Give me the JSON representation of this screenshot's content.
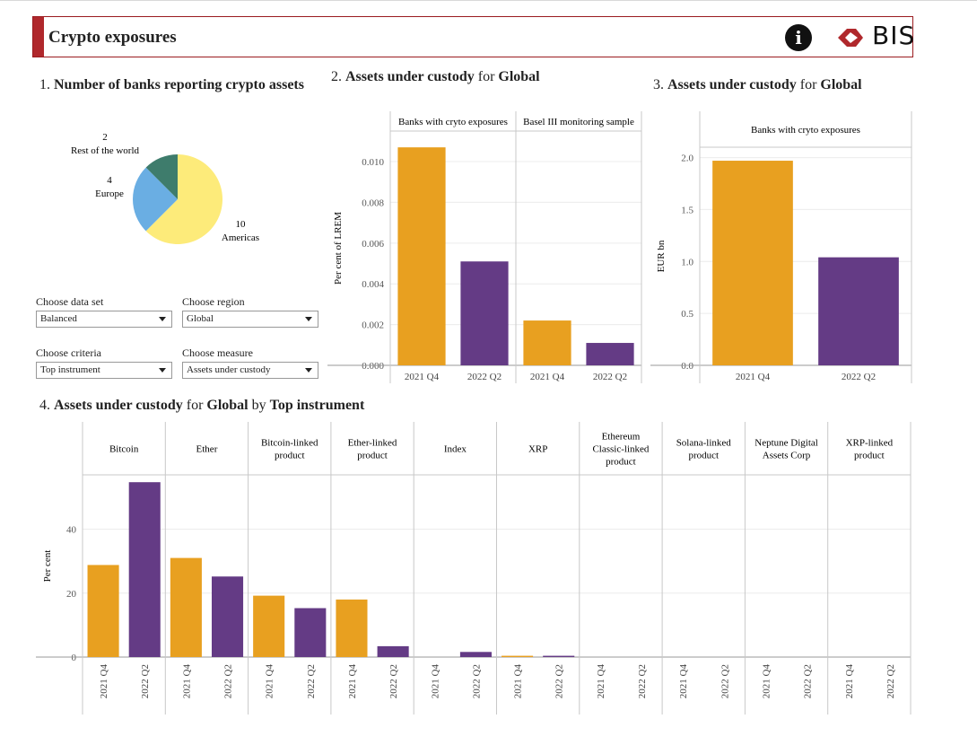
{
  "header": {
    "title": "Crypto exposures",
    "logo_text": "BIS",
    "info_icon": "info-icon",
    "logo_icon": "bis-logo-icon"
  },
  "colors": {
    "orange": "#E8A020",
    "purple": "#643B85",
    "pie_green": "#3E7C6C",
    "pie_blue": "#6AAEE3",
    "pie_yellow": "#FDEB7A",
    "accent": "#B0282C"
  },
  "section1": {
    "num": "1.",
    "title": "Number of banks reporting crypto assets"
  },
  "section2": {
    "num": "2.",
    "title_bold": "Assets under custody",
    "for": "for",
    "region": "Global"
  },
  "section3": {
    "num": "3.",
    "title_bold": "Assets under custody",
    "for": "for",
    "region": "Global"
  },
  "section4": {
    "num": "4.",
    "title_bold": "Assets under custody",
    "for": "for",
    "region": "Global",
    "by": "by",
    "criteria": "Top instrument"
  },
  "controls": {
    "dataset": {
      "label": "Choose data set",
      "value": "Balanced"
    },
    "region": {
      "label": "Choose region",
      "value": "Global"
    },
    "criteria": {
      "label": "Choose criteria",
      "value": "Top instrument"
    },
    "measure": {
      "label": "Choose measure",
      "value": "Assets under custody"
    }
  },
  "chart_data": [
    {
      "type": "pie",
      "slices": [
        {
          "label": "Americas",
          "value": 10
        },
        {
          "label": "Europe",
          "value": 4
        },
        {
          "label": "Rest of the world",
          "value": 2
        }
      ]
    },
    {
      "type": "bar",
      "ylabel": "Per cent of LREM",
      "ylim": [
        0,
        0.0115
      ],
      "yticks": [
        "0.000",
        "0.002",
        "0.004",
        "0.006",
        "0.008",
        "0.010"
      ],
      "panels": [
        {
          "name": "Banks with cryto exposures",
          "categories": [
            "2021 Q4",
            "2022 Q2"
          ],
          "values": [
            0.0107,
            0.0051
          ]
        },
        {
          "name": "Basel III monitoring sample",
          "categories": [
            "2021 Q4",
            "2022 Q2"
          ],
          "values": [
            0.0022,
            0.0011
          ]
        }
      ]
    },
    {
      "type": "bar",
      "ylabel": "EUR bn",
      "ylim": [
        0,
        2.1
      ],
      "yticks": [
        "0.0",
        "0.5",
        "1.0",
        "1.5",
        "2.0"
      ],
      "panels": [
        {
          "name": "Banks with cryto exposures",
          "categories": [
            "2021 Q4",
            "2022 Q2"
          ],
          "values": [
            1.97,
            1.04
          ]
        }
      ]
    },
    {
      "type": "bar",
      "ylabel": "Per cent",
      "ylim": [
        0,
        57
      ],
      "yticks": [
        "0",
        "20",
        "40"
      ],
      "categories": [
        "2021 Q4",
        "2022 Q2"
      ],
      "panels": [
        {
          "name": "Bitcoin",
          "values": [
            28.8,
            54.7
          ]
        },
        {
          "name": "Ether",
          "values": [
            31,
            25.2
          ]
        },
        {
          "name": "Bitcoin-linked product",
          "values": [
            19.2,
            15.3
          ]
        },
        {
          "name": "Ether-linked product",
          "values": [
            18,
            3.4
          ]
        },
        {
          "name": "Index",
          "values": [
            0,
            1.6
          ]
        },
        {
          "name": "XRP",
          "values": [
            0.4,
            0.4
          ]
        },
        {
          "name": "Ethereum Classic-linked product",
          "values": [
            0,
            0
          ]
        },
        {
          "name": "Solana-linked product",
          "values": [
            0,
            0
          ]
        },
        {
          "name": "Neptune Digital Assets Corp",
          "values": [
            0,
            0
          ]
        },
        {
          "name": "XRP-linked product",
          "values": [
            0,
            0
          ]
        }
      ]
    }
  ]
}
